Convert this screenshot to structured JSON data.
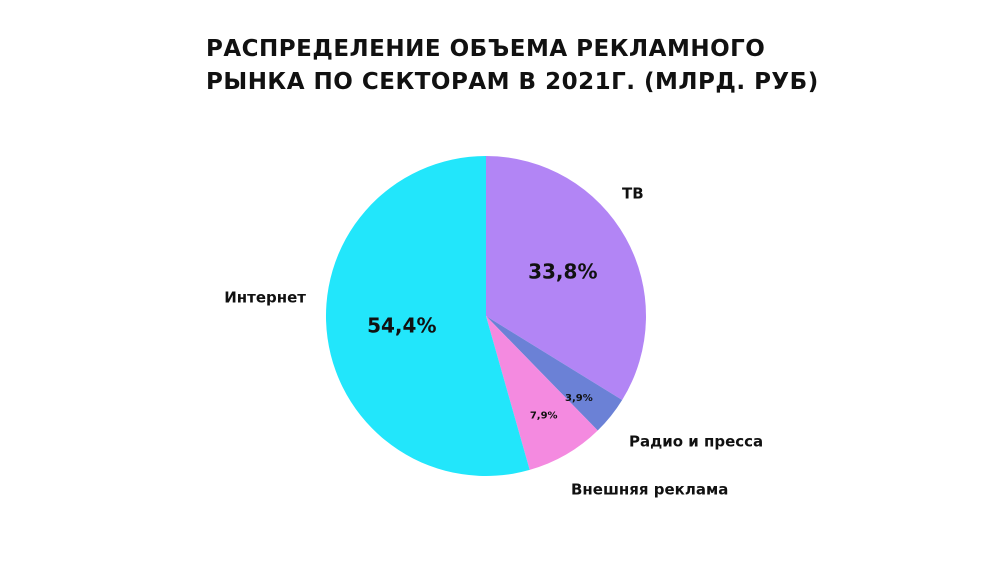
{
  "title_lines": [
    "РАСПРЕДЕЛЕНИЕ ОБЪЕМА РЕКЛАМНОГО",
    "РЫНКА ПО СЕКТОРАМ В 2021Г. (МЛРД. РУБ)"
  ],
  "chart_data": {
    "type": "pie",
    "title": "РАСПРЕДЕЛЕНИЕ ОБЪЕМА РЕКЛАМНОГО РЫНКА ПО СЕКТОРАМ В 2021Г. (МЛРД. РУБ)",
    "start": "12 o'clock",
    "direction": "clockwise",
    "legend": "none",
    "slices": [
      {
        "name": "ТВ",
        "value": 33.8,
        "label": "33,8%",
        "color": "#B285F5"
      },
      {
        "name": "Радио и пресса",
        "value": 3.9,
        "label": "3,9%",
        "color": "#6B81D6"
      },
      {
        "name": "Внешняя реклама",
        "value": 7.9,
        "label": "7,9%",
        "color": "#F48AE0"
      },
      {
        "name": "Интернет",
        "value": 54.4,
        "label": "54,4%",
        "color": "#22E6FB"
      }
    ]
  }
}
